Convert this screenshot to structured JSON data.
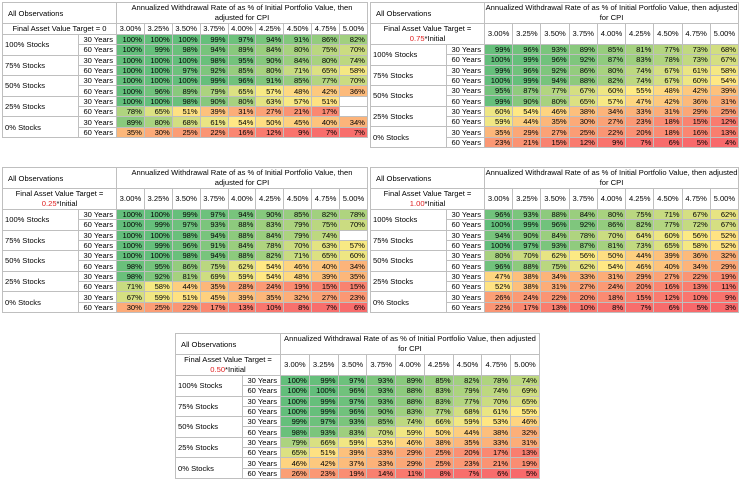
{
  "columns": [
    "3.00%",
    "3.25%",
    "3.50%",
    "3.75%",
    "4.00%",
    "4.25%",
    "4.50%",
    "4.75%",
    "5.00%"
  ],
  "row_title": "All Observations",
  "col_title": "Annualized Withdrawal Rate of as % of Initial Portfolio Value, then adjusted for CPI",
  "periods": [
    "30 Years",
    "60 Years"
  ],
  "stocks": [
    "100% Stocks",
    "75% Stocks",
    "50% Stocks",
    "25% Stocks",
    "0% Stocks"
  ],
  "colors": {
    "high": "#63be7b",
    "mid": "#ffeb84",
    "low": "#f8696b"
  },
  "tables": [
    {
      "label_text": "Final Asset Value Target = 0",
      "label_prefix": "",
      "label_red": "",
      "label_suffix": "",
      "rows": [
        [
          "100%",
          "100%",
          "100%",
          "99%",
          "97%",
          "94%",
          "91%",
          "86%",
          "82%"
        ],
        [
          "100%",
          "99%",
          "98%",
          "94%",
          "89%",
          "84%",
          "80%",
          "75%",
          "70%"
        ],
        [
          "100%",
          "100%",
          "100%",
          "98%",
          "95%",
          "90%",
          "84%",
          "80%",
          "74%"
        ],
        [
          "100%",
          "100%",
          "97%",
          "92%",
          "85%",
          "80%",
          "71%",
          "65%",
          "58%"
        ],
        [
          "100%",
          "100%",
          "100%",
          "99%",
          "96%",
          "91%",
          "85%",
          "77%",
          "70%"
        ],
        [
          "100%",
          "96%",
          "89%",
          "79%",
          "65%",
          "57%",
          "48%",
          "42%",
          "36%"
        ],
        [
          "100%",
          "100%",
          "98%",
          "90%",
          "80%",
          "63%",
          "57%",
          "51%",
          ""
        ],
        [
          "78%",
          "65%",
          "51%",
          "39%",
          "31%",
          "27%",
          "21%",
          "17%",
          ""
        ],
        [
          "89%",
          "80%",
          "68%",
          "61%",
          "54%",
          "50%",
          "45%",
          "40%",
          "34%"
        ],
        [
          "35%",
          "30%",
          "25%",
          "22%",
          "16%",
          "12%",
          "9%",
          "7%",
          "7%"
        ]
      ]
    },
    {
      "label_text": "Final Asset Value Target = 0.75*Initial",
      "label_prefix": "Final Asset Value Target =",
      "label_red": "0.75",
      "label_suffix": "*Initial",
      "rows": [
        [
          "99%",
          "96%",
          "93%",
          "89%",
          "85%",
          "81%",
          "77%",
          "73%",
          "68%"
        ],
        [
          "100%",
          "99%",
          "96%",
          "92%",
          "87%",
          "83%",
          "78%",
          "73%",
          "67%"
        ],
        [
          "99%",
          "96%",
          "92%",
          "86%",
          "80%",
          "74%",
          "67%",
          "61%",
          "58%"
        ],
        [
          "100%",
          "99%",
          "94%",
          "88%",
          "82%",
          "74%",
          "67%",
          "60%",
          "54%"
        ],
        [
          "95%",
          "87%",
          "77%",
          "67%",
          "60%",
          "55%",
          "48%",
          "42%",
          "39%"
        ],
        [
          "99%",
          "90%",
          "80%",
          "65%",
          "57%",
          "47%",
          "42%",
          "36%",
          "31%"
        ],
        [
          "60%",
          "54%",
          "46%",
          "38%",
          "34%",
          "33%",
          "31%",
          "29%",
          "25%"
        ],
        [
          "59%",
          "44%",
          "35%",
          "30%",
          "27%",
          "23%",
          "18%",
          "15%",
          "12%"
        ],
        [
          "35%",
          "29%",
          "27%",
          "25%",
          "22%",
          "20%",
          "18%",
          "16%",
          "13%"
        ],
        [
          "23%",
          "21%",
          "15%",
          "12%",
          "9%",
          "7%",
          "6%",
          "5%",
          "4%"
        ]
      ]
    },
    {
      "label_text": "Final Asset Value Target = 0.25*Initial",
      "label_prefix": "Final Asset Value Target =",
      "label_red": "0.25",
      "label_suffix": "*Initial",
      "rows": [
        [
          "100%",
          "100%",
          "99%",
          "97%",
          "94%",
          "90%",
          "85%",
          "82%",
          "78%"
        ],
        [
          "100%",
          "99%",
          "97%",
          "93%",
          "88%",
          "83%",
          "79%",
          "75%",
          "70%"
        ],
        [
          "100%",
          "100%",
          "98%",
          "94%",
          "88%",
          "84%",
          "79%",
          "74%",
          ""
        ],
        [
          "100%",
          "99%",
          "96%",
          "91%",
          "84%",
          "78%",
          "70%",
          "63%",
          "57%"
        ],
        [
          "100%",
          "100%",
          "98%",
          "94%",
          "88%",
          "82%",
          "71%",
          "65%",
          "60%"
        ],
        [
          "98%",
          "95%",
          "86%",
          "75%",
          "62%",
          "54%",
          "46%",
          "40%",
          "34%"
        ],
        [
          "98%",
          "92%",
          "81%",
          "69%",
          "59%",
          "54%",
          "48%",
          "39%",
          "35%"
        ],
        [
          "71%",
          "58%",
          "44%",
          "35%",
          "28%",
          "24%",
          "19%",
          "15%",
          "15%"
        ],
        [
          "67%",
          "59%",
          "51%",
          "45%",
          "39%",
          "35%",
          "32%",
          "27%",
          "23%"
        ],
        [
          "30%",
          "25%",
          "22%",
          "17%",
          "13%",
          "10%",
          "8%",
          "7%",
          "6%"
        ]
      ]
    },
    {
      "label_text": "Final Asset Value Target = 1.00*Initial",
      "label_prefix": "Final Asset Value Target =",
      "label_red": "1.00",
      "label_suffix": "*Initial",
      "rows": [
        [
          "96%",
          "93%",
          "88%",
          "84%",
          "80%",
          "75%",
          "71%",
          "67%",
          "62%"
        ],
        [
          "100%",
          "99%",
          "96%",
          "92%",
          "86%",
          "82%",
          "77%",
          "72%",
          "67%"
        ],
        [
          "94%",
          "90%",
          "84%",
          "78%",
          "70%",
          "64%",
          "60%",
          "56%",
          "52%"
        ],
        [
          "100%",
          "97%",
          "93%",
          "87%",
          "81%",
          "73%",
          "65%",
          "58%",
          "52%"
        ],
        [
          "80%",
          "70%",
          "62%",
          "56%",
          "50%",
          "44%",
          "39%",
          "36%",
          "32%"
        ],
        [
          "96%",
          "88%",
          "75%",
          "62%",
          "54%",
          "46%",
          "40%",
          "34%",
          "29%"
        ],
        [
          "47%",
          "38%",
          "34%",
          "33%",
          "31%",
          "29%",
          "27%",
          "22%",
          "19%"
        ],
        [
          "52%",
          "38%",
          "31%",
          "27%",
          "24%",
          "20%",
          "16%",
          "13%",
          "11%"
        ],
        [
          "26%",
          "24%",
          "22%",
          "20%",
          "18%",
          "15%",
          "12%",
          "10%",
          "9%"
        ],
        [
          "22%",
          "17%",
          "13%",
          "10%",
          "8%",
          "7%",
          "6%",
          "5%",
          "3%"
        ]
      ]
    },
    {
      "label_text": "Final Asset Value Target = 0.50*Initial",
      "label_prefix": "Final Asset Value Target =",
      "label_red": "0.50",
      "label_suffix": "*Initial",
      "rows": [
        [
          "100%",
          "99%",
          "97%",
          "93%",
          "89%",
          "85%",
          "82%",
          "78%",
          "74%"
        ],
        [
          "100%",
          "100%",
          "96%",
          "93%",
          "88%",
          "83%",
          "79%",
          "74%",
          "69%"
        ],
        [
          "100%",
          "99%",
          "97%",
          "93%",
          "88%",
          "83%",
          "77%",
          "70%",
          "65%"
        ],
        [
          "100%",
          "99%",
          "96%",
          "90%",
          "83%",
          "77%",
          "68%",
          "61%",
          "55%"
        ],
        [
          "99%",
          "97%",
          "93%",
          "85%",
          "74%",
          "66%",
          "59%",
          "53%",
          "46%"
        ],
        [
          "98%",
          "93%",
          "83%",
          "70%",
          "59%",
          "50%",
          "44%",
          "38%",
          "32%"
        ],
        [
          "79%",
          "66%",
          "59%",
          "53%",
          "46%",
          "38%",
          "35%",
          "33%",
          "31%"
        ],
        [
          "65%",
          "51%",
          "39%",
          "33%",
          "29%",
          "25%",
          "20%",
          "17%",
          "13%"
        ],
        [
          "46%",
          "42%",
          "37%",
          "33%",
          "29%",
          "25%",
          "23%",
          "21%",
          "19%"
        ],
        [
          "26%",
          "23%",
          "19%",
          "14%",
          "11%",
          "8%",
          "7%",
          "6%",
          "5%"
        ]
      ]
    }
  ]
}
